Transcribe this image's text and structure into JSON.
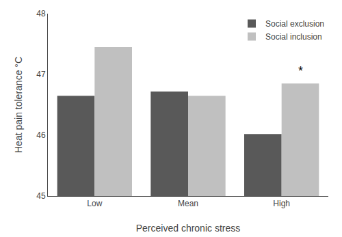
{
  "chart_data": {
    "type": "bar",
    "categories": [
      "Low",
      "Mean",
      "High"
    ],
    "series": [
      {
        "name": "Social exclusion",
        "color": "#595959",
        "values": [
          46.65,
          46.72,
          46.02
        ]
      },
      {
        "name": "Social inclusion",
        "color": "#c0c0c0",
        "values": [
          47.45,
          46.65,
          46.85
        ]
      }
    ],
    "xlabel": "Perceived chronic stress",
    "ylabel": "Heat pain tolerance °C",
    "ylim": [
      45,
      48
    ],
    "yticks": [
      45,
      46,
      47,
      48
    ],
    "grid": false,
    "legend": "upper right",
    "annotations": [
      {
        "text": "*",
        "x": "High",
        "y": 46.92,
        "series": "Social inclusion"
      }
    ]
  }
}
